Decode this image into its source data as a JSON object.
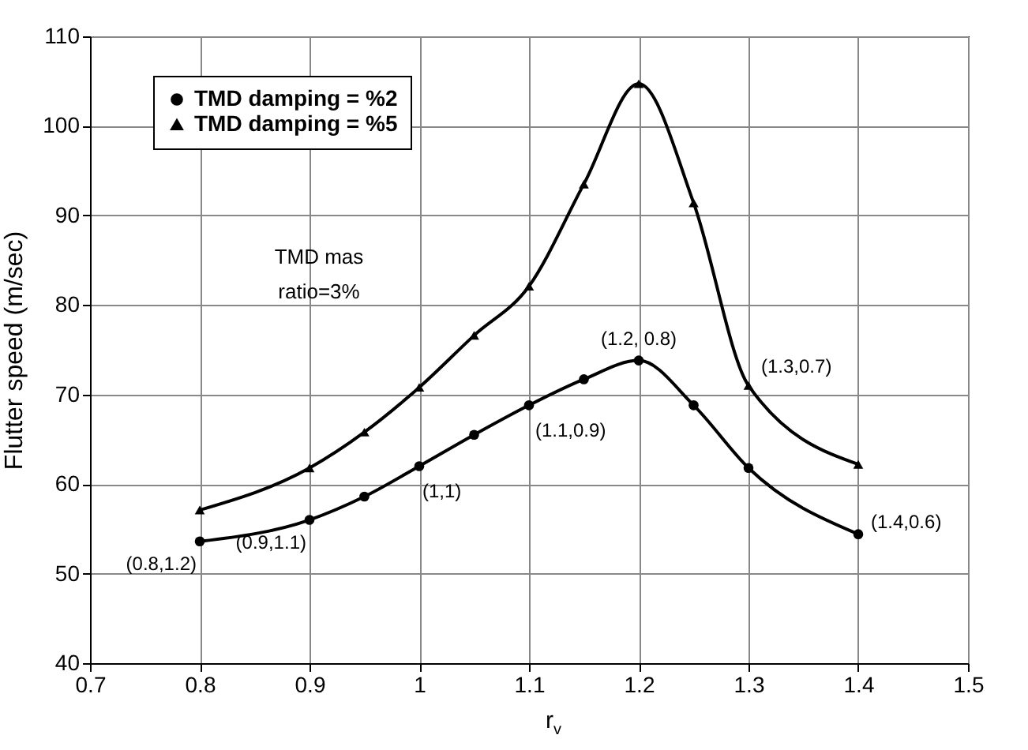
{
  "chart_data": {
    "type": "line",
    "xlabel": "r$_{v}$",
    "ylabel": "Flutter speed (m/sec)",
    "x": [
      0.8,
      0.9,
      0.95,
      1.0,
      1.05,
      1.1,
      1.15,
      1.2,
      1.25,
      1.3,
      1.4
    ],
    "series": [
      {
        "name": "TMD damping = %2",
        "color": "#000000",
        "marker": "circle",
        "values": [
          53.6,
          56.0,
          58.6,
          62.0,
          65.5,
          68.8,
          71.7,
          73.8,
          68.8,
          61.8,
          54.4
        ]
      },
      {
        "name": "TMD damping = %5",
        "color": "#000000",
        "marker": "triangle",
        "values": [
          57.1,
          61.8,
          65.8,
          70.8,
          76.6,
          82.1,
          93.5,
          104.7,
          91.4,
          71.0,
          62.2
        ]
      }
    ],
    "xlim": [
      0.7,
      1.5
    ],
    "xticks": [
      0.7,
      0.8,
      0.9,
      1,
      1.1,
      1.2,
      1.3,
      1.4,
      1.5
    ],
    "ylim": [
      40,
      110
    ],
    "yticks": [
      40,
      50,
      60,
      70,
      80,
      90,
      100,
      110
    ],
    "grid": true,
    "legend": "top left",
    "line_style": "solid",
    "annotations": [
      "TMD mas\nratio=3%",
      {
        "text": "(0.8,1.2)",
        "x": 0.8,
        "y": 53.6
      },
      {
        "text": "(0.9,1.1)",
        "x": 0.9,
        "y": 56.0
      },
      {
        "text": "(1,1)",
        "x": 1.0,
        "y": 62.0
      },
      {
        "text": "(1.1,0.9)",
        "x": 1.1,
        "y": 68.8
      },
      {
        "text": "(1.2, 0.8)",
        "x": 1.2,
        "y": 73.8
      },
      {
        "text": "(1.3,0.7)",
        "x": 1.3,
        "y": 71.0
      },
      {
        "text": "(1.4,0.6)",
        "x": 1.4,
        "y": 54.4
      }
    ]
  }
}
